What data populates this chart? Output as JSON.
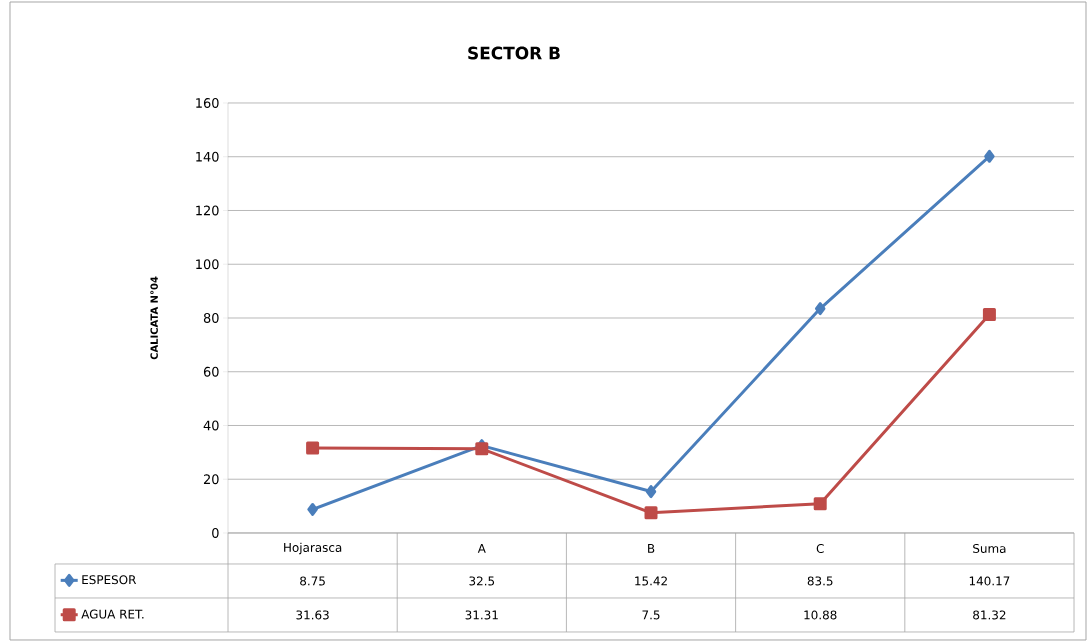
{
  "chart_data": {
    "type": "line",
    "title": "SECTOR B",
    "ylabel": "CALICATA N°04",
    "categories": [
      "Hojarasca",
      "A",
      "B",
      "C",
      "Suma"
    ],
    "series": [
      {
        "name": "ESPESOR",
        "color": "#4a7ebb",
        "marker": "diamond",
        "values": [
          8.75,
          32.5,
          15.42,
          83.5,
          140.17
        ]
      },
      {
        "name": "AGUA RET.",
        "color": "#be4b48",
        "marker": "square",
        "values": [
          31.63,
          31.31,
          7.5,
          10.88,
          81.32
        ]
      }
    ],
    "ylim": [
      0,
      160
    ],
    "yticks": [
      0,
      20,
      40,
      60,
      80,
      100,
      120,
      140,
      160
    ],
    "grid": "y",
    "legend": "bottom",
    "data_labels": true,
    "line_style": "solid"
  }
}
